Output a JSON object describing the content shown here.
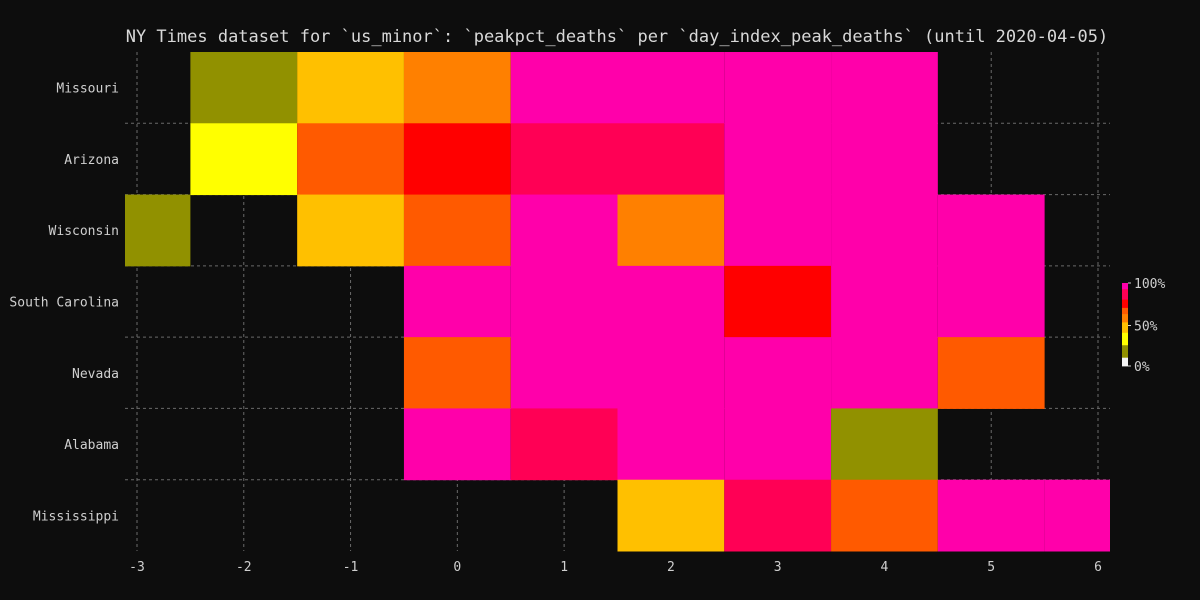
{
  "chart_data": {
    "type": "heatmap",
    "title": "NY Times dataset for `us_minor`: `peakpct_deaths` per `day_index_peak_deaths` (until 2020-04-05)",
    "xlabel": "",
    "ylabel": "",
    "x": [
      -3,
      -2,
      -1,
      0,
      1,
      2,
      3,
      4,
      5,
      6
    ],
    "xlim": [
      -3.1,
      6.1
    ],
    "grid": true,
    "rows": [
      {
        "name": "Missouri",
        "values": [
          null,
          20,
          45,
          60,
          100,
          100,
          100,
          100,
          null,
          null
        ]
      },
      {
        "name": "Arizona",
        "values": [
          null,
          35,
          65,
          75,
          85,
          85,
          100,
          100,
          null,
          null
        ]
      },
      {
        "name": "Wisconsin",
        "values": [
          20,
          null,
          45,
          65,
          100,
          60,
          100,
          100,
          100,
          null
        ]
      },
      {
        "name": "South Carolina",
        "values": [
          null,
          null,
          null,
          100,
          100,
          100,
          75,
          100,
          100,
          null
        ]
      },
      {
        "name": "Nevada",
        "values": [
          null,
          null,
          null,
          65,
          100,
          100,
          100,
          100,
          65,
          null
        ]
      },
      {
        "name": "Alabama",
        "values": [
          null,
          null,
          null,
          100,
          85,
          100,
          100,
          20,
          null,
          null
        ]
      },
      {
        "name": "Mississippi",
        "values": [
          null,
          null,
          null,
          null,
          null,
          45,
          85,
          65,
          100,
          100
        ]
      }
    ],
    "colorbar": {
      "ticks": [
        "100%",
        "50%",
        "0%"
      ],
      "stops": [
        {
          "v": 0,
          "color": "#f5f5f5"
        },
        {
          "v": 20,
          "color": "#919100"
        },
        {
          "v": 35,
          "color": "#ffff00"
        },
        {
          "v": 45,
          "color": "#ffc000"
        },
        {
          "v": 60,
          "color": "#ff8000"
        },
        {
          "v": 65,
          "color": "#ff5a00"
        },
        {
          "v": 75,
          "color": "#ff0000"
        },
        {
          "v": 85,
          "color": "#ff0055"
        },
        {
          "v": 100,
          "color": "#ff00aa"
        }
      ]
    }
  }
}
